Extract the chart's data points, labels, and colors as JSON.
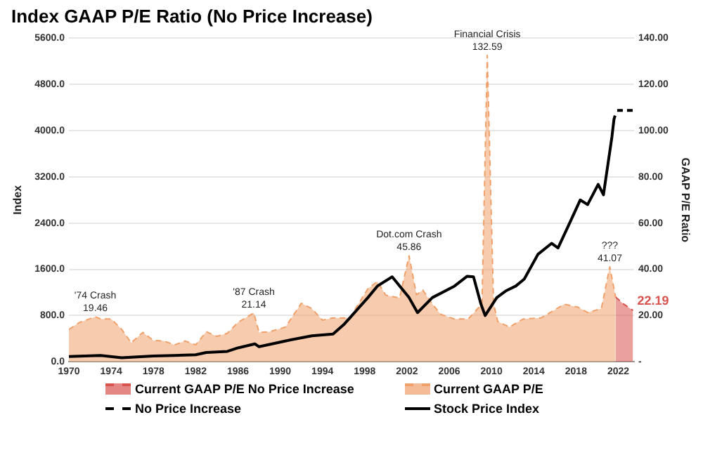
{
  "chart_data": {
    "type": "line",
    "title": "Index GAAP P/E Ratio (No Price Increase)",
    "ylabel": "Index",
    "y2label": "GAAP P/E Ratio",
    "xlim": [
      1970,
      2023.5
    ],
    "xticks": [
      1970,
      1974,
      1978,
      1982,
      1986,
      1990,
      1994,
      1998,
      2002,
      2006,
      2010,
      2014,
      2018,
      2022
    ],
    "ylim": [
      0,
      5600
    ],
    "yticks": [
      {
        "value": 0,
        "label": "0.0"
      },
      {
        "value": 800,
        "label": "800.0"
      },
      {
        "value": 1600,
        "label": "1600.0"
      },
      {
        "value": 2400,
        "label": "2400.0"
      },
      {
        "value": 3200,
        "label": "3200.0"
      },
      {
        "value": 4000,
        "label": "4000.0"
      },
      {
        "value": 4800,
        "label": "4800.0"
      },
      {
        "value": 5600,
        "label": "5600.0"
      }
    ],
    "y2lim": [
      0,
      140
    ],
    "y2ticks": [
      {
        "value": 0,
        "label": "-"
      },
      {
        "value": 20,
        "label": "20.00"
      },
      {
        "value": 40,
        "label": "40.00"
      },
      {
        "value": 60,
        "label": "60.00"
      },
      {
        "value": 80,
        "label": "80.00"
      },
      {
        "value": 100,
        "label": "100.00"
      },
      {
        "value": 120,
        "label": "120.00"
      },
      {
        "value": 140,
        "label": "140.00"
      }
    ],
    "grid": "y",
    "legend": "bottom",
    "marker": "none",
    "series": [
      {
        "name": "Current GAAP P/E No Price Increase",
        "type": "area",
        "axis": "y2",
        "color": "#d9534f",
        "line_style": "dashed",
        "x": [
          2021.75,
          2022.5,
          2023.4
        ],
        "values": [
          28,
          25,
          22.19
        ],
        "value_labels": [
          null,
          null,
          "22.19"
        ]
      },
      {
        "name": "Current GAAP P/E",
        "type": "area",
        "axis": "y2",
        "color": "#f0a06a",
        "line_style": "dashed",
        "x": [
          1970,
          1971,
          1972.5,
          1973,
          1974,
          1975,
          1975.9,
          1977,
          1978,
          1979,
          1980,
          1981,
          1982,
          1983,
          1984,
          1985,
          1986,
          1987.5,
          1988,
          1989,
          1990.5,
          1992,
          1993,
          1994,
          1995,
          1996.6,
          1998.3,
          1999.2,
          2000,
          2001.3,
          2002.2,
          2002.9,
          2003.5,
          2004.4,
          2005.2,
          2006.5,
          2007.8,
          2008.7,
          2009.1,
          2009.6,
          2010.2,
          2010.6,
          2011.7,
          2013,
          2014.7,
          2016.9,
          2018.2,
          2019.1,
          2020.4,
          2021.2,
          2021.75
        ],
        "values": [
          14,
          17,
          19.46,
          18.5,
          18.5,
          14,
          8.2,
          12.7,
          9.2,
          9,
          7.3,
          9,
          7.3,
          13,
          11,
          12.3,
          17,
          21.14,
          12.7,
          13,
          15,
          25.3,
          23,
          18,
          19,
          19,
          31.6,
          34.7,
          28.8,
          27.6,
          45.86,
          29,
          31,
          25,
          20.5,
          18.5,
          18.5,
          23,
          25,
          132.59,
          25,
          17.4,
          15,
          18.5,
          19,
          24.9,
          23.6,
          21.3,
          23,
          41.07,
          28
        ]
      },
      {
        "name": "No Price Increase",
        "type": "line",
        "axis": "y",
        "color": "#000000",
        "line_style": "dashed",
        "x": [
          2021.9,
          2023.4
        ],
        "values": [
          4350,
          4350
        ]
      },
      {
        "name": "Stock Price Index",
        "type": "line",
        "axis": "y",
        "color": "#000000",
        "line_style": "solid",
        "x": [
          1970,
          1973,
          1975,
          1978,
          1980,
          1982,
          1983,
          1985,
          1986,
          1987.6,
          1988,
          1990,
          1991,
          1993,
          1995,
          1996,
          1996.6,
          1998.3,
          1999.2,
          2000.6,
          2002.2,
          2003,
          2004.4,
          2006.5,
          2007.7,
          2008.3,
          2009,
          2009.4,
          2010.5,
          2011.4,
          2012.3,
          2013.1,
          2014.4,
          2015.7,
          2016.3,
          2017.4,
          2018.4,
          2019.1,
          2020.1,
          2020.6,
          2021.4,
          2021.6,
          2021.7
        ],
        "values": [
          90,
          110,
          70,
          100,
          110,
          120,
          160,
          180,
          240,
          310,
          260,
          340,
          380,
          450,
          480,
          640,
          760,
          1110,
          1310,
          1470,
          1110,
          850,
          1110,
          1310,
          1480,
          1470,
          1000,
          800,
          1110,
          1230,
          1310,
          1430,
          1860,
          2050,
          1970,
          2400,
          2800,
          2720,
          3070,
          2890,
          3890,
          4200,
          4260
        ]
      }
    ],
    "annotations": [
      {
        "text": "'74 Crash\n19.46",
        "x": 1972.5,
        "y": 778
      },
      {
        "text": "'87 Crash\n21.14",
        "x": 1987.5,
        "y": 846
      },
      {
        "text": "Dot.com Crash\n45.86",
        "x": 2002.2,
        "y": 1834
      },
      {
        "text": "Financial Crisis\n132.59",
        "x": 2009.6,
        "y": 5304
      },
      {
        "text": "???\n41.07",
        "x": 2021.2,
        "y": 1643
      }
    ]
  }
}
